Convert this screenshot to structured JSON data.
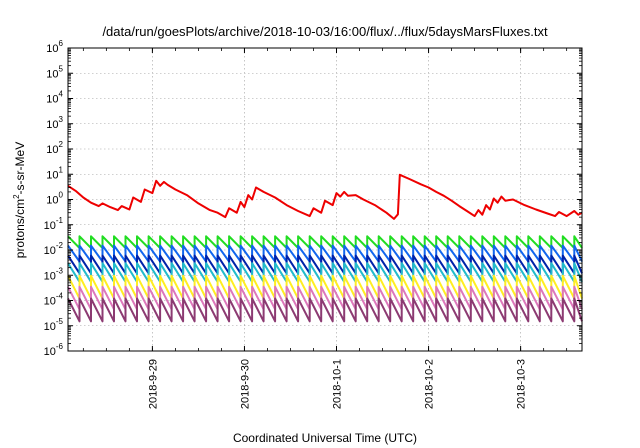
{
  "chart_data": {
    "type": "line",
    "title": "/data/run/goesPlots/archive/2018-10-03/16:00/flux/../flux/5daysMarsFluxes.txt",
    "xlabel": "Coordinated Universal Time (UTC)",
    "ylabel": {
      "prefix": "protons/cm",
      "sup": "2",
      "suffix": "-s-sr-MeV"
    },
    "yscale": "log",
    "ylim": [
      1e-06,
      1000000.0
    ],
    "y_ticks": [
      {
        "value": 1e-06,
        "base": "10",
        "exp": "-6"
      },
      {
        "value": 1e-05,
        "base": "10",
        "exp": "-5"
      },
      {
        "value": 0.0001,
        "base": "10",
        "exp": "-4"
      },
      {
        "value": 0.001,
        "base": "10",
        "exp": "-3"
      },
      {
        "value": 0.01,
        "base": "10",
        "exp": "-2"
      },
      {
        "value": 0.1,
        "base": "10",
        "exp": "-1"
      },
      {
        "value": 1,
        "base": "10",
        "exp": "0"
      },
      {
        "value": 10,
        "base": "10",
        "exp": "1"
      },
      {
        "value": 100,
        "base": "10",
        "exp": "2"
      },
      {
        "value": 1000,
        "base": "10",
        "exp": "3"
      },
      {
        "value": 10000,
        "base": "10",
        "exp": "4"
      },
      {
        "value": 100000,
        "base": "10",
        "exp": "5"
      },
      {
        "value": 1000000,
        "base": "10",
        "exp": "6"
      }
    ],
    "xlim": [
      "2018-09-28T02:00",
      "2018-10-03T16:00"
    ],
    "x_ticks": [
      {
        "value": "2018-09-29T00:00",
        "label": "2018-9-29"
      },
      {
        "value": "2018-09-30T00:00",
        "label": "2018-9-30"
      },
      {
        "value": "2018-10-01T00:00",
        "label": "2018-10-1"
      },
      {
        "value": "2018-10-02T00:00",
        "label": "2018-10-2"
      },
      {
        "value": "2018-10-03T00:00",
        "label": "2018-10-3"
      }
    ],
    "grid": true,
    "legend": "none",
    "series": [
      {
        "color": "#ee0000",
        "values": [
          {
            "x": "2018-09-28T02:00",
            "y": 3.5
          },
          {
            "x": "2018-09-28T04:00",
            "y": 2.2
          },
          {
            "x": "2018-09-28T06:00",
            "y": 1.2
          },
          {
            "x": "2018-09-28T08:00",
            "y": 0.75
          },
          {
            "x": "2018-09-28T10:00",
            "y": 0.55
          },
          {
            "x": "2018-09-28T11:00",
            "y": 0.7
          },
          {
            "x": "2018-09-28T13:00",
            "y": 0.5
          },
          {
            "x": "2018-09-28T15:00",
            "y": 0.38
          },
          {
            "x": "2018-09-28T16:00",
            "y": 0.55
          },
          {
            "x": "2018-09-28T18:00",
            "y": 0.4
          },
          {
            "x": "2018-09-28T19:00",
            "y": 1.2
          },
          {
            "x": "2018-09-28T21:00",
            "y": 0.8
          },
          {
            "x": "2018-09-28T22:00",
            "y": 2.5
          },
          {
            "x": "2018-09-29T00:00",
            "y": 1.8
          },
          {
            "x": "2018-09-29T01:00",
            "y": 5.5
          },
          {
            "x": "2018-09-29T02:00",
            "y": 3.5
          },
          {
            "x": "2018-09-29T03:00",
            "y": 5.0
          },
          {
            "x": "2018-09-29T04:00",
            "y": 3.8
          },
          {
            "x": "2018-09-29T06:00",
            "y": 2.5
          },
          {
            "x": "2018-09-29T09:00",
            "y": 1.5
          },
          {
            "x": "2018-09-29T12:00",
            "y": 0.7
          },
          {
            "x": "2018-09-29T15:00",
            "y": 0.38
          },
          {
            "x": "2018-09-29T17:00",
            "y": 0.3
          },
          {
            "x": "2018-09-29T19:00",
            "y": 0.2
          },
          {
            "x": "2018-09-29T20:00",
            "y": 0.45
          },
          {
            "x": "2018-09-29T22:00",
            "y": 0.3
          },
          {
            "x": "2018-09-29T23:00",
            "y": 0.8
          },
          {
            "x": "2018-09-30T00:00",
            "y": 0.5
          },
          {
            "x": "2018-09-30T01:00",
            "y": 1.5
          },
          {
            "x": "2018-09-30T02:00",
            "y": 1.0
          },
          {
            "x": "2018-09-30T03:00",
            "y": 3.0
          },
          {
            "x": "2018-09-30T05:00",
            "y": 2.0
          },
          {
            "x": "2018-09-30T08:00",
            "y": 1.2
          },
          {
            "x": "2018-09-30T11:00",
            "y": 0.6
          },
          {
            "x": "2018-09-30T14:00",
            "y": 0.35
          },
          {
            "x": "2018-09-30T17:00",
            "y": 0.22
          },
          {
            "x": "2018-09-30T18:00",
            "y": 0.45
          },
          {
            "x": "2018-09-30T20:00",
            "y": 0.3
          },
          {
            "x": "2018-09-30T21:00",
            "y": 0.9
          },
          {
            "x": "2018-09-30T23:00",
            "y": 0.6
          },
          {
            "x": "2018-10-01T00:00",
            "y": 1.8
          },
          {
            "x": "2018-10-01T01:00",
            "y": 1.3
          },
          {
            "x": "2018-10-01T02:00",
            "y": 2.0
          },
          {
            "x": "2018-10-01T03:00",
            "y": 1.4
          },
          {
            "x": "2018-10-01T05:00",
            "y": 1.5
          },
          {
            "x": "2018-10-01T07:00",
            "y": 1.0
          },
          {
            "x": "2018-10-01T10:00",
            "y": 0.6
          },
          {
            "x": "2018-10-01T13:00",
            "y": 0.3
          },
          {
            "x": "2018-10-01T15:00",
            "y": 0.17
          },
          {
            "x": "2018-10-01T16:00",
            "y": 0.26
          },
          {
            "x": "2018-10-01T16:30",
            "y": 9.5
          },
          {
            "x": "2018-10-01T19:00",
            "y": 6.5
          },
          {
            "x": "2018-10-01T22:00",
            "y": 4.0
          },
          {
            "x": "2018-10-02T00:00",
            "y": 3.0
          },
          {
            "x": "2018-10-02T02:00",
            "y": 2.0
          },
          {
            "x": "2018-10-02T04:00",
            "y": 1.4
          },
          {
            "x": "2018-10-02T06:00",
            "y": 0.9
          },
          {
            "x": "2018-10-02T08:00",
            "y": 0.55
          },
          {
            "x": "2018-10-02T10:00",
            "y": 0.35
          },
          {
            "x": "2018-10-02T12:00",
            "y": 0.22
          },
          {
            "x": "2018-10-02T13:00",
            "y": 0.38
          },
          {
            "x": "2018-10-02T14:00",
            "y": 0.25
          },
          {
            "x": "2018-10-02T15:00",
            "y": 0.6
          },
          {
            "x": "2018-10-02T16:00",
            "y": 0.4
          },
          {
            "x": "2018-10-02T17:00",
            "y": 1.1
          },
          {
            "x": "2018-10-02T18:00",
            "y": 0.75
          },
          {
            "x": "2018-10-02T19:00",
            "y": 1.3
          },
          {
            "x": "2018-10-02T20:00",
            "y": 0.9
          },
          {
            "x": "2018-10-02T22:00",
            "y": 1.0
          },
          {
            "x": "2018-10-03T01:00",
            "y": 0.6
          },
          {
            "x": "2018-10-03T04:00",
            "y": 0.4
          },
          {
            "x": "2018-10-03T07:00",
            "y": 0.28
          },
          {
            "x": "2018-10-03T09:00",
            "y": 0.22
          },
          {
            "x": "2018-10-03T10:00",
            "y": 0.32
          },
          {
            "x": "2018-10-03T12:00",
            "y": 0.22
          },
          {
            "x": "2018-10-03T14:00",
            "y": 0.35
          },
          {
            "x": "2018-10-03T15:00",
            "y": 0.25
          },
          {
            "x": "2018-10-03T16:00",
            "y": 0.3
          }
        ]
      },
      {
        "color": "#22dd22",
        "sawtooth": {
          "high": 0.035,
          "low": 0.012,
          "period_hours": 3
        }
      },
      {
        "color": "#1166ee",
        "sawtooth": {
          "high": 0.015,
          "low": 0.0035,
          "period_hours": 3
        }
      },
      {
        "color": "#0022aa",
        "sawtooth": {
          "high": 0.006,
          "low": 0.0012,
          "period_hours": 3
        }
      },
      {
        "color": "#22bbcc",
        "sawtooth": {
          "high": 0.003,
          "low": 0.00055,
          "period_hours": 3
        }
      },
      {
        "color": "#ffee22",
        "sawtooth": {
          "high": 0.00095,
          "low": 0.00012,
          "period_hours": 3
        }
      },
      {
        "color": "#dd77bb",
        "sawtooth": {
          "high": 0.00035,
          "low": 4.5e-05,
          "period_hours": 3
        }
      },
      {
        "color": "#8c3a72",
        "sawtooth": {
          "high": 0.00012,
          "low": 1.5e-05,
          "period_hours": 3
        }
      }
    ]
  }
}
